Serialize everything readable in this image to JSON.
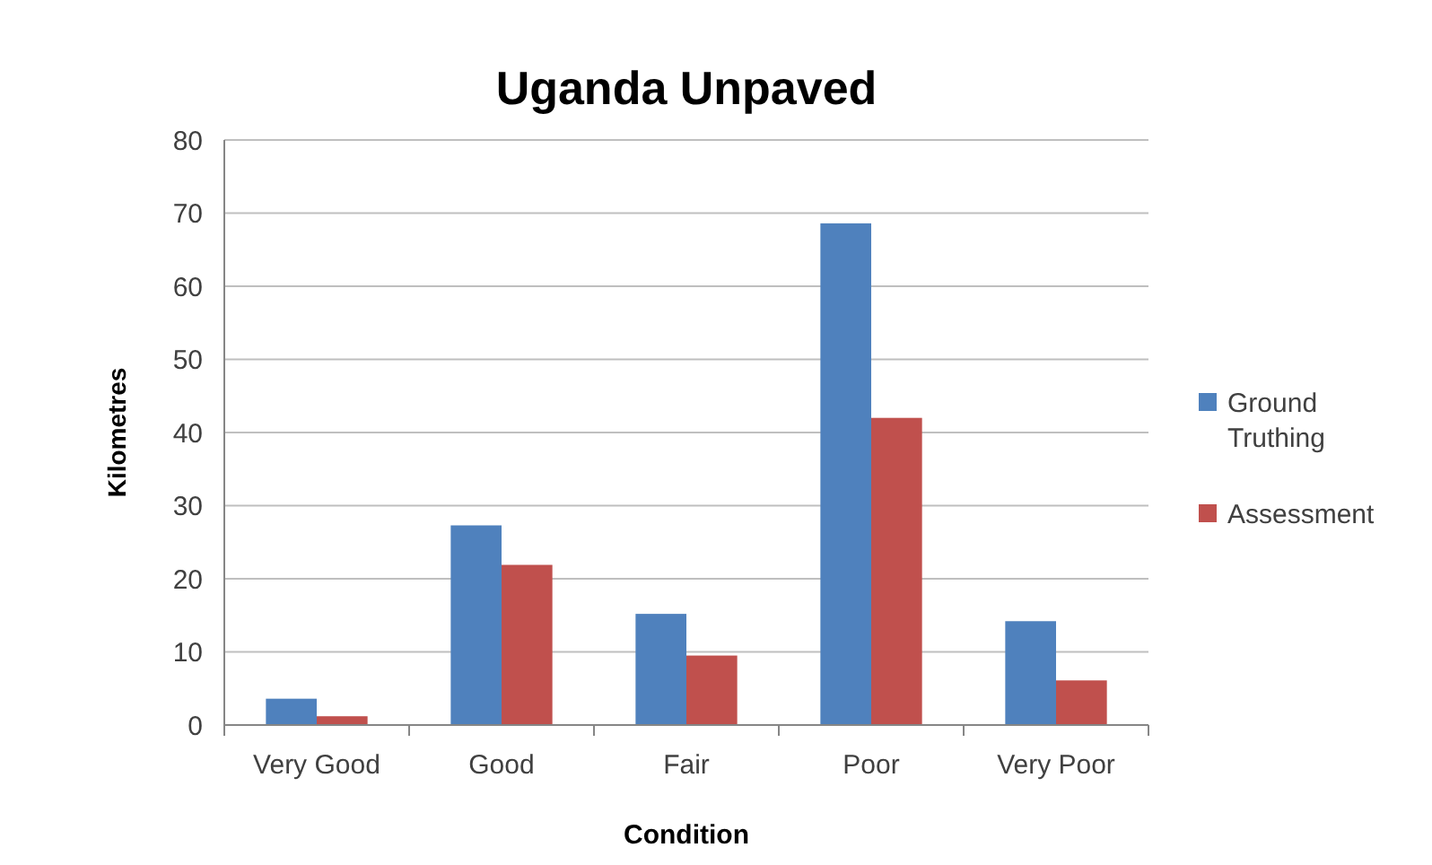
{
  "chart_data": {
    "type": "bar",
    "title": "Uganda Unpaved",
    "xlabel": "Condition",
    "ylabel": "Kilometres",
    "categories": [
      "Very Good",
      "Good",
      "Fair",
      "Poor",
      "Very Poor"
    ],
    "series": [
      {
        "name": "Ground Truthing",
        "color": "#4f81bd",
        "values": [
          3.6,
          27.3,
          15.2,
          68.6,
          14.2
        ]
      },
      {
        "name": "Assessment",
        "color": "#c0504d",
        "values": [
          1.2,
          21.9,
          9.5,
          42.0,
          6.1
        ]
      }
    ],
    "ylim": [
      0,
      80
    ],
    "yticks": [
      0,
      10,
      20,
      30,
      40,
      50,
      60,
      70,
      80
    ],
    "grid": "y",
    "legend": "right"
  }
}
